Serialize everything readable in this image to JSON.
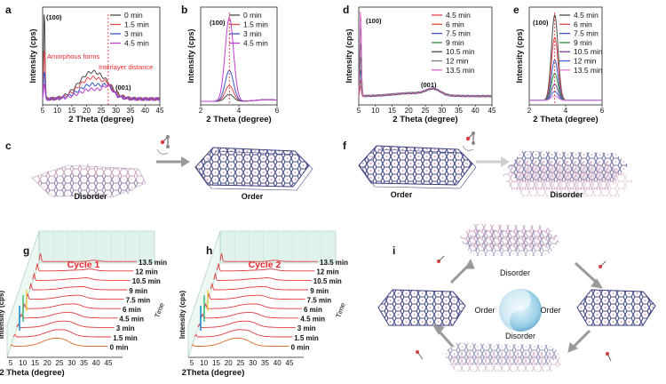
{
  "figure": {
    "panel_letters": [
      "a",
      "b",
      "c",
      "d",
      "e",
      "f",
      "g",
      "h",
      "i"
    ],
    "watermark": "©"
  },
  "chart_data": [
    {
      "id": "a",
      "type": "line",
      "xlabel": "2 Theta (degree)",
      "ylabel": "Intensity (cps)",
      "xlim": [
        3,
        45
      ],
      "xticks": [
        "5",
        "10",
        "15",
        "20",
        "25",
        "30",
        "35",
        "40",
        "45"
      ],
      "annotations": [
        "(100)",
        "(001)",
        "Amorphous forms",
        "Interlayer distance"
      ],
      "series": [
        {
          "name": "0 min",
          "color": "#4a4a4a",
          "peak100": 0.95,
          "hump": 0.28,
          "p001": 0.02
        },
        {
          "name": "1.5 min",
          "color": "#e0474c",
          "peak100": 0.55,
          "hump": 0.22,
          "p001": 0.04
        },
        {
          "name": "3 min",
          "color": "#3b57c9",
          "peak100": 0.3,
          "hump": 0.15,
          "p001": 0.06
        },
        {
          "name": "4.5 min",
          "color": "#c03fd0",
          "peak100": 0.15,
          "hump": 0.1,
          "p001": 0.08
        }
      ]
    },
    {
      "id": "b",
      "type": "line",
      "xlabel": "2 Theta (degree)",
      "ylabel": "Intensity (cps)",
      "xlim": [
        2,
        6
      ],
      "xticks": [
        "2",
        "4",
        "6"
      ],
      "annotations": [
        "(100)"
      ],
      "series": [
        {
          "name": "0 min",
          "color": "#4a4a4a",
          "peak": 0.08
        },
        {
          "name": "1.5 min",
          "color": "#e0474c",
          "peak": 0.18
        },
        {
          "name": "3 min",
          "color": "#3b57c9",
          "peak": 0.35
        },
        {
          "name": "4.5 min",
          "color": "#c03fd0",
          "peak": 0.95
        }
      ]
    },
    {
      "id": "d",
      "type": "line",
      "xlabel": "2 Theta (degree)",
      "ylabel": "Intensity (cps)",
      "xlim": [
        3,
        45
      ],
      "xticks": [
        "5",
        "10",
        "15",
        "20",
        "25",
        "30",
        "35",
        "40",
        "45"
      ],
      "annotations": [
        "(100)",
        "(001)"
      ],
      "series": [
        {
          "name": "4.5 min",
          "color": "#e0474c",
          "peak100": 0.1
        },
        {
          "name": "6 min",
          "color": "#d85a3a",
          "peak100": 0.18
        },
        {
          "name": "7.5 min",
          "color": "#3b57c9",
          "peak100": 0.3
        },
        {
          "name": "9 min",
          "color": "#2f8f3a",
          "peak100": 0.45
        },
        {
          "name": "10.5 min",
          "color": "#4a4a4a",
          "peak100": 0.6
        },
        {
          "name": "12 min",
          "color": "#7a7a7a",
          "peak100": 0.78
        },
        {
          "name": "13.5 min",
          "color": "#d766c8",
          "peak100": 0.95
        }
      ]
    },
    {
      "id": "e",
      "type": "line",
      "xlabel": "2 Theta (degree)",
      "ylabel": "Intensity (cps)",
      "xlim": [
        2,
        6
      ],
      "xticks": [
        "2",
        "4",
        "6"
      ],
      "annotations": [
        "(100)"
      ],
      "series": [
        {
          "name": "4.5 min",
          "color": "#4a4a4a",
          "peak": 0.95
        },
        {
          "name": "6 min",
          "color": "#e0474c",
          "peak": 0.7
        },
        {
          "name": "7.5 min",
          "color": "#3b57c9",
          "peak": 0.45
        },
        {
          "name": "9 min",
          "color": "#2f8f3a",
          "peak": 0.3
        },
        {
          "name": "10.5 min",
          "color": "#7a3fa0",
          "peak": 0.18
        },
        {
          "name": "12 min",
          "color": "#4060e0",
          "peak": 0.1
        },
        {
          "name": "13.5 min",
          "color": "#e080d0",
          "peak": 0.05
        }
      ]
    },
    {
      "id": "g",
      "type": "line",
      "title": "Cycle 1",
      "xlabel": "2 Theta (degree)",
      "ylabel": "Intensity (cps)",
      "zlabel": "Time",
      "xticks": [
        "5",
        "10",
        "15",
        "20",
        "25",
        "30",
        "35",
        "40",
        "45"
      ],
      "series": [
        {
          "name": "13.5 min"
        },
        {
          "name": "12 min"
        },
        {
          "name": "10.5 min"
        },
        {
          "name": "9 min"
        },
        {
          "name": "7.5 min"
        },
        {
          "name": "6 min"
        },
        {
          "name": "4.5 min"
        },
        {
          "name": "3 min"
        },
        {
          "name": "1.5 min"
        },
        {
          "name": "0 min"
        }
      ]
    },
    {
      "id": "h",
      "type": "line",
      "title": "Cycle 2",
      "xlabel": "2Theta (degree)",
      "ylabel": "Intensity (cps)",
      "zlabel": "Time",
      "xticks": [
        "5",
        "10",
        "15",
        "20",
        "25",
        "30",
        "35",
        "40",
        "45"
      ],
      "series": [
        {
          "name": "13.5 min"
        },
        {
          "name": "12 min"
        },
        {
          "name": "10.5 min"
        },
        {
          "name": "9 min"
        },
        {
          "name": "7.5 min"
        },
        {
          "name": "6 min"
        },
        {
          "name": "4.5 min"
        },
        {
          "name": "3 min"
        },
        {
          "name": "1.5 min"
        },
        {
          "name": "0 min"
        }
      ]
    }
  ],
  "schemes": {
    "c": {
      "left": "Disorder",
      "right": "Order"
    },
    "f": {
      "left": "Order",
      "right": "Disorder"
    },
    "i": {
      "top": "Disorder",
      "bottom": "Disorder",
      "left": "Order",
      "right": "Order"
    }
  },
  "colors": {
    "title_red": "#e8262b",
    "annot_red": "#e8262b",
    "ridge_red": "#e33a3a",
    "pale_green": "#dff3ec",
    "molecule_blue": "#6b6fa8",
    "molecule_pink": "#d79ac4"
  }
}
